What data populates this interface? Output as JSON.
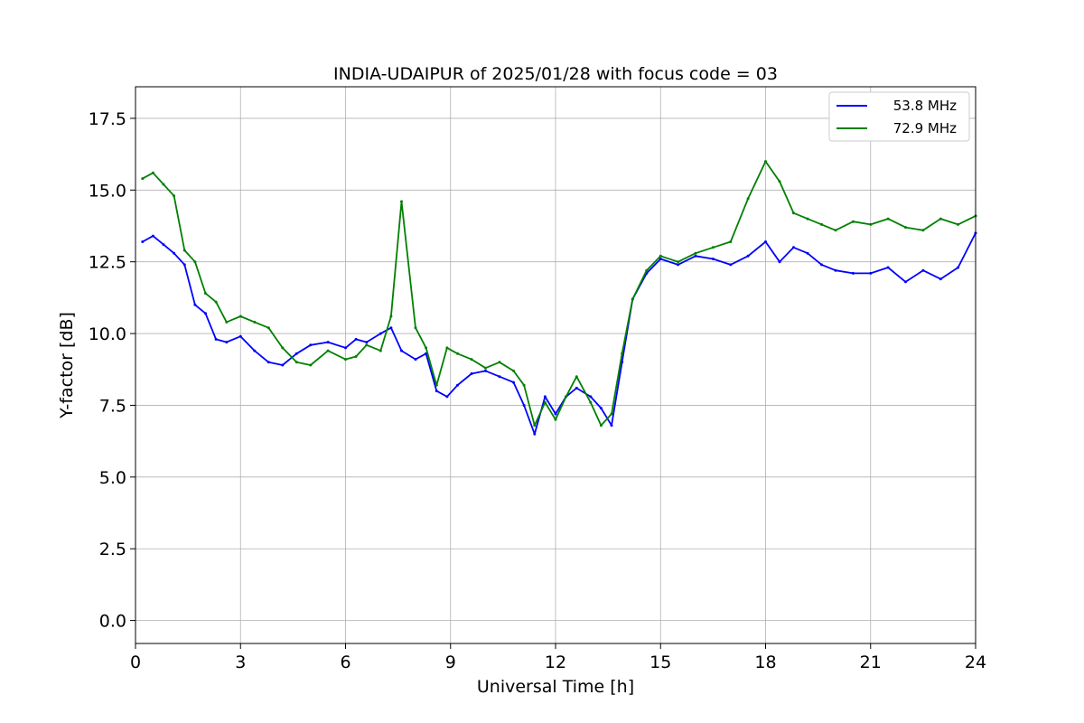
{
  "chart_data": {
    "type": "line",
    "title": "INDIA-UDAIPUR of 2025/01/28 with focus code = 03",
    "xlabel": "Universal Time [h]",
    "ylabel": "Y-factor [dB]",
    "xlim": [
      0,
      24
    ],
    "ylim": [
      -0.8,
      18.6
    ],
    "xticks": [
      0,
      3,
      6,
      9,
      12,
      15,
      18,
      21,
      24
    ],
    "xtick_labels": [
      "0",
      "3",
      "6",
      "9",
      "12",
      "15",
      "18",
      "21",
      "24"
    ],
    "yticks": [
      0,
      2.5,
      5,
      7.5,
      10,
      12.5,
      15,
      17.5
    ],
    "ytick_labels": [
      "0.0",
      "2.5",
      "5.0",
      "7.5",
      "10.0",
      "12.5",
      "15.0",
      "17.5"
    ],
    "grid": true,
    "legend_position": "top-right",
    "series": [
      {
        "name": "53.8 MHz",
        "color": "#0000ff",
        "x": [
          0.2,
          0.5,
          0.8,
          1.1,
          1.4,
          1.7,
          2.0,
          2.3,
          2.6,
          3.0,
          3.4,
          3.8,
          4.2,
          4.6,
          5.0,
          5.5,
          6.0,
          6.3,
          6.6,
          7.0,
          7.3,
          7.6,
          8.0,
          8.3,
          8.6,
          8.9,
          9.2,
          9.6,
          10.0,
          10.4,
          10.8,
          11.1,
          11.4,
          11.7,
          12.0,
          12.3,
          12.6,
          13.0,
          13.3,
          13.6,
          13.9,
          14.2,
          14.6,
          15.0,
          15.5,
          16.0,
          16.5,
          17.0,
          17.5,
          18.0,
          18.4,
          18.8,
          19.2,
          19.6,
          20.0,
          20.5,
          21.0,
          21.5,
          22.0,
          22.5,
          23.0,
          23.5,
          24.0
        ],
        "y": [
          13.2,
          13.4,
          13.1,
          12.8,
          12.4,
          11.0,
          10.7,
          9.8,
          9.7,
          9.9,
          9.4,
          9.0,
          8.9,
          9.3,
          9.6,
          9.7,
          9.5,
          9.8,
          9.7,
          10.0,
          10.2,
          9.4,
          9.1,
          9.3,
          8.0,
          7.8,
          8.2,
          8.6,
          8.7,
          8.5,
          8.3,
          7.5,
          6.5,
          7.8,
          7.2,
          7.8,
          8.1,
          7.8,
          7.4,
          6.8,
          9.0,
          11.2,
          12.1,
          12.6,
          12.4,
          12.7,
          12.6,
          12.4,
          12.7,
          13.2,
          12.5,
          13.0,
          12.8,
          12.4,
          12.2,
          12.1,
          12.1,
          12.3,
          11.8,
          12.2,
          11.9,
          12.3,
          13.5
        ]
      },
      {
        "name": "72.9 MHz",
        "color": "#008000",
        "x": [
          0.2,
          0.5,
          0.8,
          1.1,
          1.4,
          1.7,
          2.0,
          2.3,
          2.6,
          3.0,
          3.4,
          3.8,
          4.2,
          4.6,
          5.0,
          5.5,
          6.0,
          6.3,
          6.6,
          7.0,
          7.3,
          7.6,
          8.0,
          8.3,
          8.6,
          8.9,
          9.2,
          9.6,
          10.0,
          10.4,
          10.8,
          11.1,
          11.4,
          11.7,
          12.0,
          12.3,
          12.6,
          13.0,
          13.3,
          13.6,
          13.9,
          14.2,
          14.6,
          15.0,
          15.5,
          16.0,
          16.5,
          17.0,
          17.5,
          18.0,
          18.4,
          18.8,
          19.2,
          19.6,
          20.0,
          20.5,
          21.0,
          21.5,
          22.0,
          22.5,
          23.0,
          23.5,
          24.0
        ],
        "y": [
          15.4,
          15.6,
          15.2,
          14.8,
          12.9,
          12.5,
          11.4,
          11.1,
          10.4,
          10.6,
          10.4,
          10.2,
          9.5,
          9.0,
          8.9,
          9.4,
          9.1,
          9.2,
          9.6,
          9.4,
          10.6,
          14.6,
          10.2,
          9.5,
          8.2,
          9.5,
          9.3,
          9.1,
          8.8,
          9.0,
          8.7,
          8.2,
          6.8,
          7.6,
          7.0,
          7.8,
          8.5,
          7.6,
          6.8,
          7.2,
          9.3,
          11.2,
          12.2,
          12.7,
          12.5,
          12.8,
          13.0,
          13.2,
          14.7,
          16.0,
          15.3,
          14.2,
          14.0,
          13.8,
          13.6,
          13.9,
          13.8,
          14.0,
          13.7,
          13.6,
          14.0,
          13.8,
          14.1
        ]
      }
    ]
  }
}
